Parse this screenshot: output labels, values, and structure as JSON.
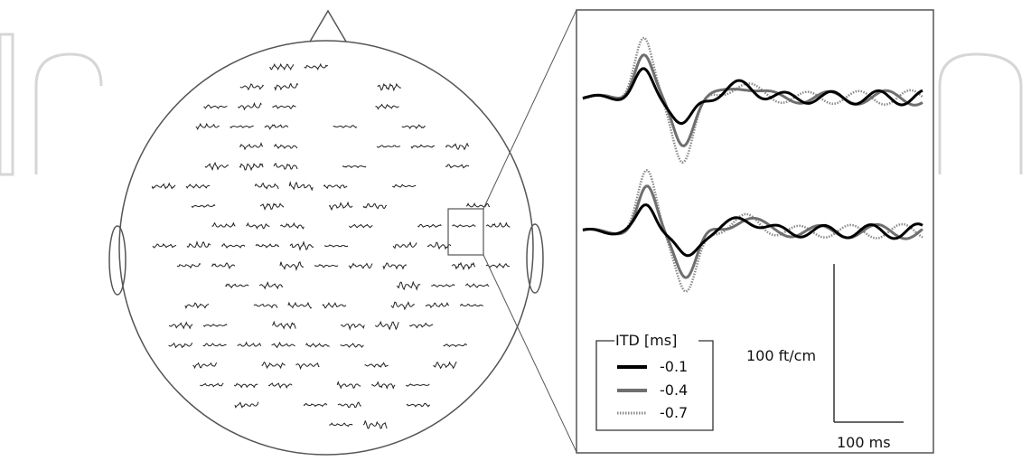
{
  "colors": {
    "background": "#ffffff",
    "outline": "#555555",
    "watermark": "#d6d6d6",
    "series_thick": "#000000",
    "series_gray": "#6f6f6f",
    "series_dotted": "#8a8a8a",
    "channel_trace": "#222222"
  },
  "legend": {
    "title": "ITD [ms]",
    "items": [
      {
        "label": "-0.1",
        "style": "thick-black"
      },
      {
        "label": "-0.4",
        "style": "gray"
      },
      {
        "label": "-0.7",
        "style": "dotted"
      }
    ]
  },
  "scale_bar": {
    "amplitude_label": "100 ft/cm",
    "time_label": "100 ms"
  },
  "icons": {
    "nose": "triangle-nose-icon",
    "ears": "ellipse-ear-icon",
    "magnifier": "selection-box-icon"
  }
}
